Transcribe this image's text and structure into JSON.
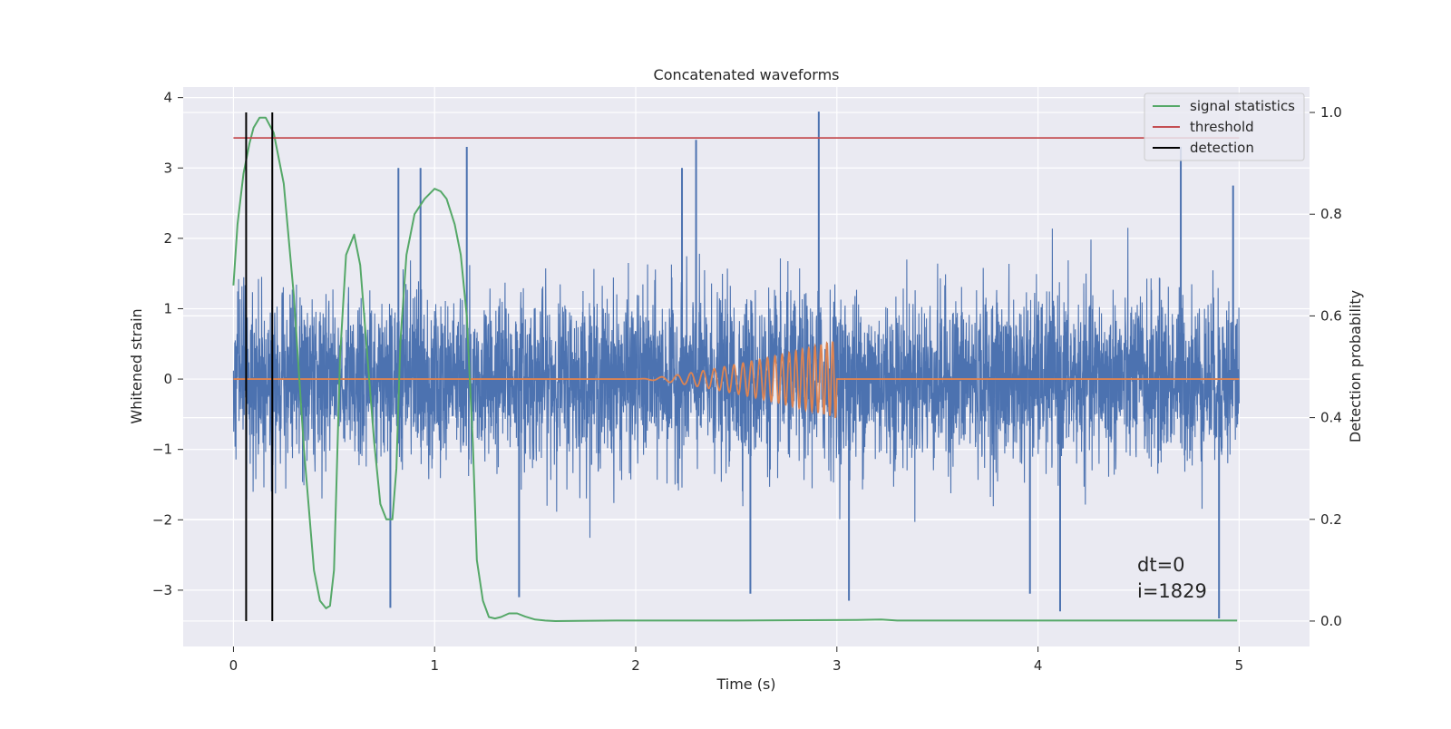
{
  "chart_data": {
    "type": "line",
    "title": "Concatenated waveforms",
    "xlabel": "Time (s)",
    "ylabel": "Whitened strain",
    "y2label": "Detection probability",
    "xlim": [
      -0.25,
      5.35
    ],
    "ylim": [
      -3.8,
      4.15
    ],
    "y2lim": [
      -0.05,
      1.05
    ],
    "x_ticks": [
      0,
      1,
      2,
      3,
      4,
      5
    ],
    "y_ticks": [
      -3,
      -2,
      -1,
      0,
      1,
      2,
      3,
      4
    ],
    "y2_ticks": [
      0.0,
      0.2,
      0.4,
      0.6,
      0.8,
      1.0
    ],
    "x_tick_labels": [
      "0",
      "1",
      "2",
      "3",
      "4",
      "5"
    ],
    "y_tick_labels": [
      "−3",
      "−2",
      "−1",
      "0",
      "1",
      "2",
      "3",
      "4"
    ],
    "y2_tick_labels": [
      "0.0",
      "0.2",
      "0.4",
      "0.6",
      "0.8",
      "1.0"
    ],
    "grid": true,
    "legend_position": "top-right",
    "legend": [
      "signal statistics",
      "threshold",
      "detection"
    ],
    "annotation": [
      "dt=0",
      "i=1829"
    ],
    "colors": {
      "noise": "#4c72b0",
      "injection": "#dd8452",
      "signal_statistics": "#55a868",
      "threshold": "#c44e52",
      "detection": "#000000",
      "background": "#eaeaf2"
    },
    "series": [
      {
        "name": "strain",
        "axis": "left",
        "color": "#4c72b0",
        "x_start": 0,
        "x_end": 5,
        "approx_std": 0.6,
        "peaks": [
          [
            0.82,
            3.0
          ],
          [
            0.93,
            3.0
          ],
          [
            1.16,
            3.3
          ],
          [
            2.23,
            3.0
          ],
          [
            2.3,
            3.4
          ],
          [
            2.91,
            3.8
          ],
          [
            4.71,
            3.3
          ],
          [
            4.97,
            2.75
          ],
          [
            0.78,
            -3.25
          ],
          [
            1.42,
            -3.1
          ],
          [
            2.57,
            -3.05
          ],
          [
            3.06,
            -3.15
          ],
          [
            3.96,
            -3.05
          ],
          [
            4.11,
            -3.3
          ],
          [
            4.9,
            -3.4
          ]
        ]
      },
      {
        "name": "injection",
        "axis": "left",
        "color": "#dd8452",
        "x_start": 0,
        "x_end": 5,
        "chirp_start": 2.0,
        "chirp_end": 3.0,
        "chirp_peak_amplitude": 0.55
      },
      {
        "name": "signal statistics",
        "axis": "right",
        "color": "#55a868",
        "x": [
          0.0,
          0.02,
          0.05,
          0.08,
          0.1,
          0.13,
          0.16,
          0.2,
          0.25,
          0.3,
          0.35,
          0.4,
          0.43,
          0.46,
          0.48,
          0.5,
          0.53,
          0.56,
          0.6,
          0.63,
          0.66,
          0.7,
          0.73,
          0.76,
          0.79,
          0.81,
          0.83,
          0.86,
          0.9,
          0.95,
          1.0,
          1.03,
          1.06,
          1.1,
          1.13,
          1.16,
          1.19,
          1.21,
          1.24,
          1.27,
          1.3,
          1.33,
          1.37,
          1.41,
          1.45,
          1.5,
          1.55,
          1.6,
          1.9,
          2.5,
          3.1,
          3.22,
          3.3,
          4.0,
          4.9,
          4.99
        ],
        "values": [
          0.66,
          0.78,
          0.88,
          0.94,
          0.97,
          0.99,
          0.99,
          0.96,
          0.86,
          0.64,
          0.34,
          0.1,
          0.04,
          0.025,
          0.03,
          0.1,
          0.52,
          0.72,
          0.76,
          0.7,
          0.55,
          0.35,
          0.23,
          0.2,
          0.2,
          0.3,
          0.55,
          0.72,
          0.8,
          0.83,
          0.85,
          0.845,
          0.83,
          0.78,
          0.72,
          0.6,
          0.35,
          0.12,
          0.04,
          0.008,
          0.005,
          0.008,
          0.015,
          0.015,
          0.009,
          0.003,
          0.001,
          0.0,
          0.001,
          0.001,
          0.002,
          0.003,
          0.001,
          0.001,
          0.001,
          0.001
        ]
      },
      {
        "name": "threshold",
        "axis": "right",
        "color": "#c44e52",
        "x": [
          0,
          5
        ],
        "values": [
          0.95,
          0.95
        ]
      }
    ],
    "detections": [
      0.063,
      0.193
    ]
  }
}
